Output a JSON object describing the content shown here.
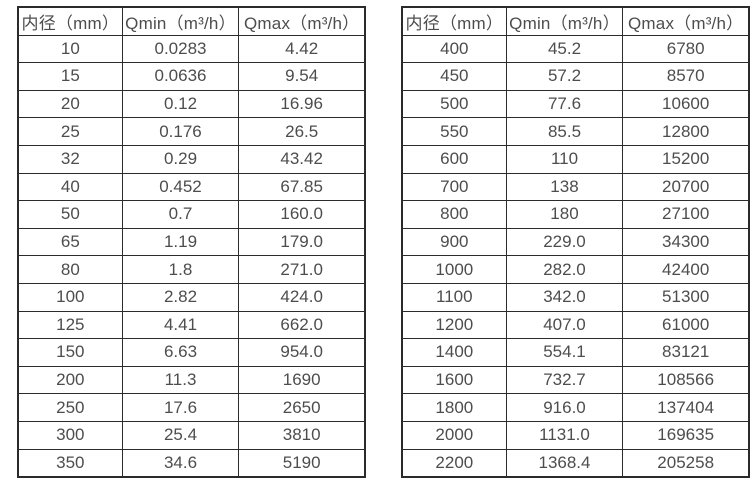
{
  "colors": {
    "background": "#ffffff",
    "border": "#2b2b2b",
    "text": "#4d4d4d"
  },
  "column_names": [
    "diameter",
    "qmin",
    "qmax"
  ],
  "tables": [
    {
      "headers": [
        "内径（mm）",
        "Qmin（m³/h）",
        "Qmax（m³/h）"
      ],
      "rows": [
        [
          "10",
          "0.0283",
          "4.42"
        ],
        [
          "15",
          "0.0636",
          "9.54"
        ],
        [
          "20",
          "0.12",
          "16.96"
        ],
        [
          "25",
          "0.176",
          "26.5"
        ],
        [
          "32",
          "0.29",
          "43.42"
        ],
        [
          "40",
          "0.452",
          "67.85"
        ],
        [
          "50",
          "0.7",
          "160.0"
        ],
        [
          "65",
          "1.19",
          "179.0"
        ],
        [
          "80",
          "1.8",
          "271.0"
        ],
        [
          "100",
          "2.82",
          "424.0"
        ],
        [
          "125",
          "4.41",
          "662.0"
        ],
        [
          "150",
          "6.63",
          "954.0"
        ],
        [
          "200",
          "11.3",
          "1690"
        ],
        [
          "250",
          "17.6",
          "2650"
        ],
        [
          "300",
          "25.4",
          "3810"
        ],
        [
          "350",
          "34.6",
          "5190"
        ]
      ]
    },
    {
      "headers": [
        "内径（mm）",
        "Qmin（m³/h）",
        "Qmax（m³/h）"
      ],
      "rows": [
        [
          "400",
          "45.2",
          "6780"
        ],
        [
          "450",
          "57.2",
          "8570"
        ],
        [
          "500",
          "77.6",
          "10600"
        ],
        [
          "550",
          "85.5",
          "12800"
        ],
        [
          "600",
          "110",
          "15200"
        ],
        [
          "700",
          "138",
          "20700"
        ],
        [
          "800",
          "180",
          "27100"
        ],
        [
          "900",
          "229.0",
          "34300"
        ],
        [
          "1000",
          "282.0",
          "42400"
        ],
        [
          "1100",
          "342.0",
          "51300"
        ],
        [
          "1200",
          "407.0",
          "61000"
        ],
        [
          "1400",
          "554.1",
          "83121"
        ],
        [
          "1600",
          "732.7",
          "108566"
        ],
        [
          "1800",
          "916.0",
          "137404"
        ],
        [
          "2000",
          "1131.0",
          "169635"
        ],
        [
          "2200",
          "1368.4",
          "205258"
        ]
      ]
    }
  ]
}
